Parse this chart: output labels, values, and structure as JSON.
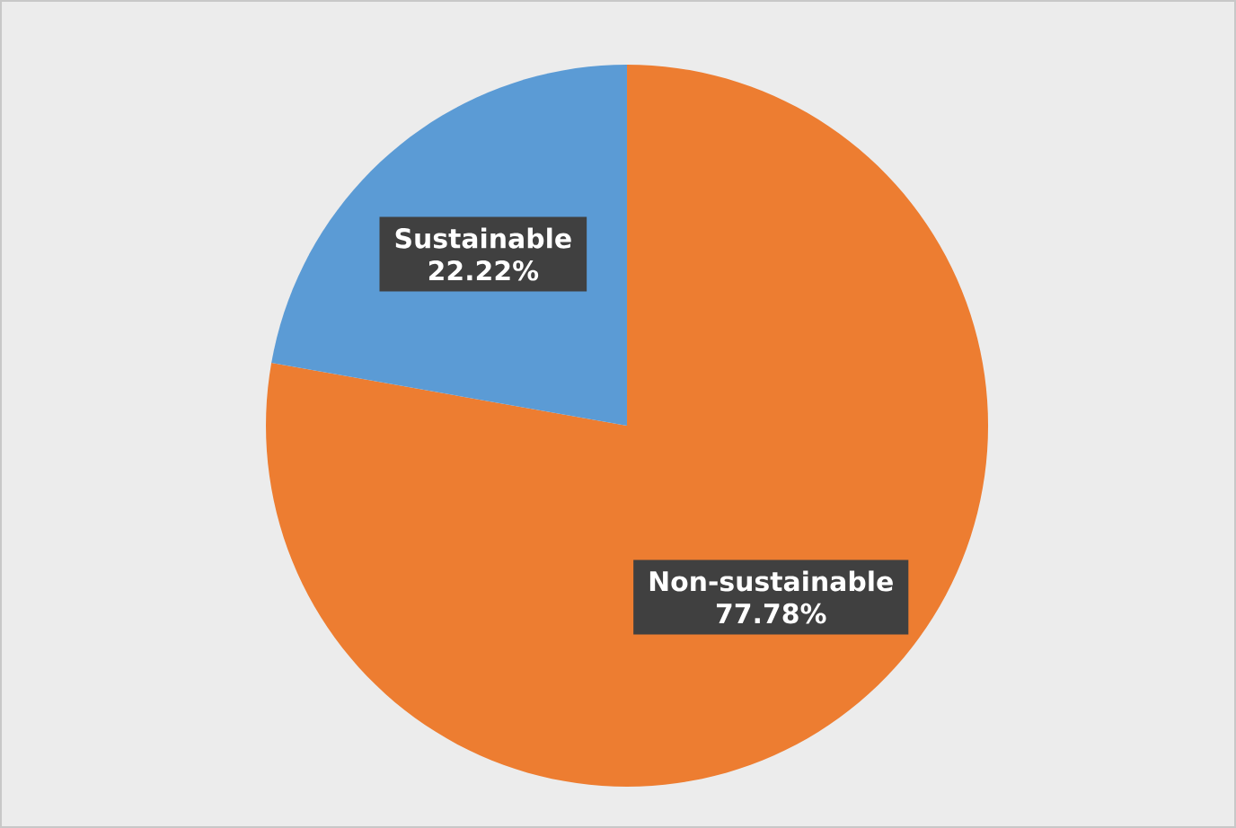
{
  "chart_data": {
    "type": "pie",
    "categories": [
      "Non-sustainable",
      "Sustainable"
    ],
    "values": [
      77.78,
      22.22
    ],
    "colors": [
      "#ed7d31",
      "#5b9bd5"
    ],
    "value_labels": [
      "77.78%",
      "22.22%"
    ]
  }
}
